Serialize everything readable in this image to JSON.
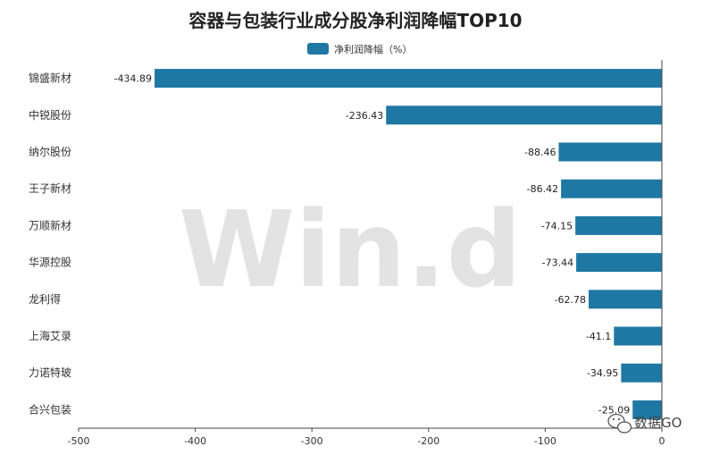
{
  "chart_data": {
    "type": "bar",
    "orientation": "horizontal",
    "title": "容器与包装行业成分股净利润降幅TOP10",
    "categories": [
      "锦盛新材",
      "中锐股份",
      "纳尔股份",
      "王子新材",
      "万顺新材",
      "华源控股",
      "龙利得",
      "上海艾录",
      "力诺特玻",
      "合兴包装"
    ],
    "series": [
      {
        "name": "净利润降幅（%）",
        "values": [
          -434.89,
          -236.43,
          -88.46,
          -86.42,
          -74.15,
          -73.44,
          -62.78,
          -41.1,
          -34.95,
          -25.09
        ],
        "labels": [
          "-434.89",
          "-236.43",
          "-88.46",
          "-86.42",
          "-74.15",
          "-73.44",
          "-62.78",
          "-41.1",
          "-34.95",
          "-25.09"
        ],
        "color": "#1f77a4"
      }
    ],
    "x_ticks": [
      -500,
      -400,
      -300,
      -200,
      -100,
      0
    ],
    "xlim": [
      -500,
      0
    ],
    "grid": false,
    "legend_position": "top-center"
  },
  "watermark": "Win.d",
  "brand": "数据GO"
}
